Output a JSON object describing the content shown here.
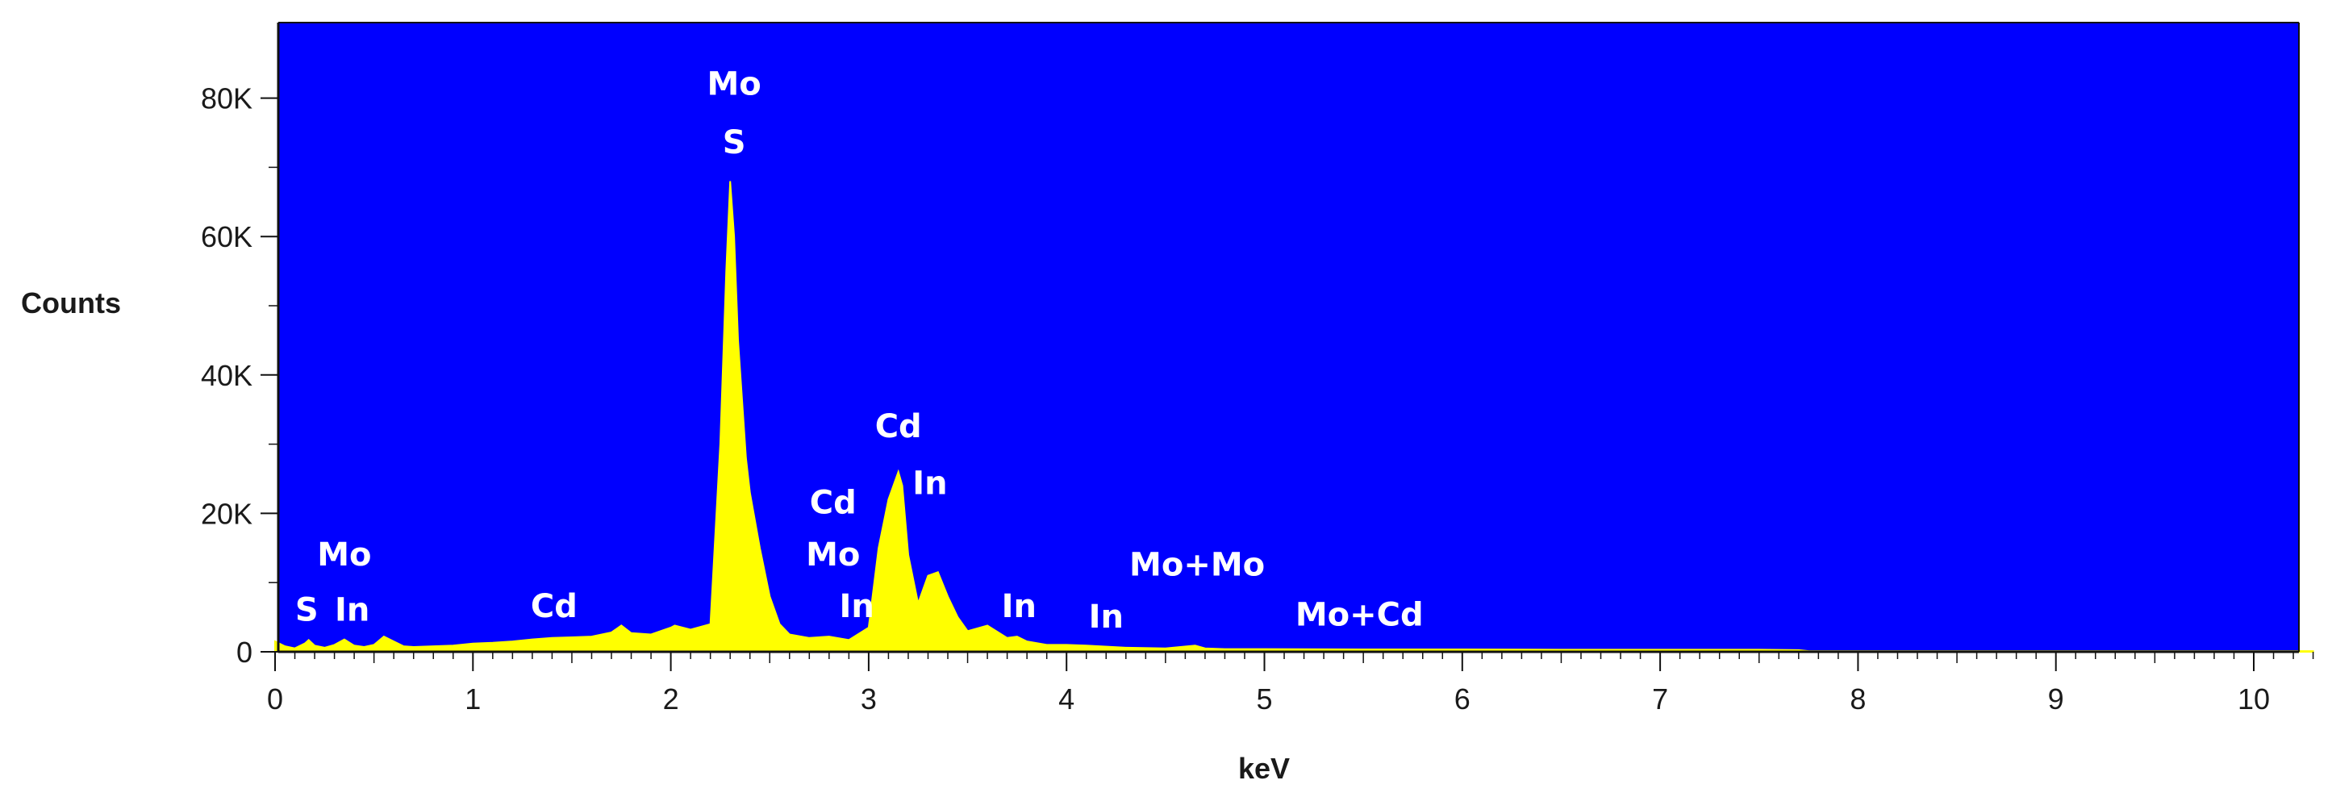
{
  "chart_data": {
    "type": "area",
    "title": "",
    "xlabel": "keV",
    "ylabel": "Counts",
    "xlim": [
      0,
      10.3
    ],
    "ylim": [
      0,
      90000
    ],
    "x_ticks": [
      0,
      1,
      2,
      3,
      4,
      5,
      6,
      7,
      8,
      9,
      10
    ],
    "x_tick_labels": [
      "0",
      "1",
      "2",
      "3",
      "4",
      "5",
      "6",
      "7",
      "8",
      "9",
      "10"
    ],
    "y_ticks": [
      0,
      20000,
      40000,
      60000,
      80000
    ],
    "y_tick_labels": [
      "0",
      "20K",
      "40K",
      "60K",
      "80K"
    ],
    "grid": false,
    "background_color": "#0000ff",
    "fill_color": "#ffff00",
    "series": [
      {
        "x": [
          0.0,
          0.05,
          0.1,
          0.15,
          0.17,
          0.2,
          0.25,
          0.3,
          0.35,
          0.4,
          0.45,
          0.5,
          0.55,
          0.6,
          0.65,
          0.7,
          0.8,
          0.9,
          1.0,
          1.1,
          1.2,
          1.3,
          1.4,
          1.5,
          1.6,
          1.7,
          1.75,
          1.8,
          1.9,
          2.0,
          2.02,
          2.1,
          2.2,
          2.25,
          2.28,
          2.3,
          2.32,
          2.34,
          2.38,
          2.4,
          2.45,
          2.5,
          2.55,
          2.6,
          2.7,
          2.8,
          2.9,
          3.0,
          3.05,
          3.1,
          3.15,
          3.17,
          3.2,
          3.25,
          3.3,
          3.35,
          3.4,
          3.45,
          3.5,
          3.6,
          3.7,
          3.75,
          3.8,
          3.9,
          4.0,
          4.1,
          4.3,
          4.5,
          4.65,
          4.7,
          4.8,
          5.0,
          5.5,
          6.0,
          6.5,
          7.0,
          7.5,
          7.7,
          7.75,
          8.0,
          9.0,
          10.0,
          10.3
        ],
        "values": [
          1500,
          800,
          500,
          1200,
          1700,
          900,
          600,
          1000,
          1800,
          900,
          700,
          1000,
          2200,
          1500,
          800,
          700,
          800,
          900,
          1200,
          1300,
          1500,
          1800,
          2000,
          2100,
          2200,
          2800,
          3800,
          2700,
          2500,
          3500,
          3800,
          3200,
          4000,
          30000,
          55000,
          68000,
          60000,
          45000,
          28000,
          23000,
          15000,
          8000,
          4000,
          2500,
          2000,
          2200,
          1700,
          3500,
          15000,
          22000,
          26000,
          24000,
          14000,
          7000,
          11000,
          11500,
          8000,
          5000,
          3000,
          3800,
          2000,
          2200,
          1500,
          1000,
          1000,
          900,
          600,
          500,
          900,
          500,
          400,
          400,
          350,
          350,
          300,
          300,
          300,
          250,
          100,
          100,
          100,
          100,
          100
        ]
      }
    ],
    "annotations": [
      {
        "text": "Mo",
        "x": 2.32,
        "y": 80500
      },
      {
        "text": "S",
        "x": 2.32,
        "y": 72000
      },
      {
        "text": "Mo",
        "x": 0.35,
        "y": 12500
      },
      {
        "text": "S",
        "x": 0.16,
        "y": 4500
      },
      {
        "text": "In",
        "x": 0.39,
        "y": 4500
      },
      {
        "text": "Cd",
        "x": 1.41,
        "y": 5000
      },
      {
        "text": "Cd",
        "x": 2.82,
        "y": 20000
      },
      {
        "text": "Mo",
        "x": 2.82,
        "y": 12500
      },
      {
        "text": "In",
        "x": 2.94,
        "y": 5000
      },
      {
        "text": "Cd",
        "x": 3.15,
        "y": 31000
      },
      {
        "text": "In",
        "x": 3.31,
        "y": 22800
      },
      {
        "text": "In",
        "x": 3.76,
        "y": 5000
      },
      {
        "text": "In",
        "x": 4.2,
        "y": 3500
      },
      {
        "text": "Mo+Mo",
        "x": 4.66,
        "y": 11000
      },
      {
        "text": "Mo+Cd",
        "x": 5.48,
        "y": 3800
      }
    ]
  }
}
